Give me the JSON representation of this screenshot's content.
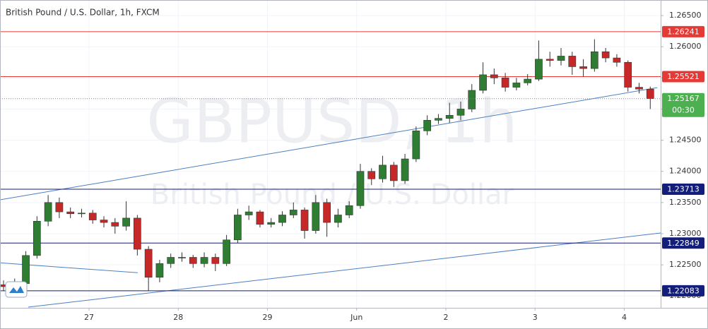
{
  "chart_data": {
    "type": "candlestick",
    "title": "British Pound / U.S. Dollar, 1h, FXCM",
    "watermark": "GBPUSD, 1h",
    "watermark_subtitle": "British Pound / U.S. Dollar",
    "countdown": "00:30",
    "up_color": "#2e7d32",
    "down_color": "#c62828",
    "grid": true,
    "x": [
      0,
      3,
      6,
      9,
      12,
      15,
      18,
      21,
      24,
      27,
      30,
      33,
      36,
      39,
      42,
      45,
      48,
      51,
      54,
      57,
      60,
      63,
      66,
      69,
      72,
      75,
      78,
      81,
      84,
      87,
      90,
      93,
      96,
      99,
      102,
      105,
      108,
      111,
      114,
      117,
      120,
      123,
      126,
      129,
      132,
      135,
      138,
      141,
      144,
      147,
      150,
      153,
      156,
      159,
      162,
      165,
      168,
      171,
      174
    ],
    "open": [
      1.2218,
      1.2215,
      1.222,
      1.2265,
      1.232,
      1.235,
      1.2335,
      1.2332,
      1.2333,
      1.2322,
      1.2318,
      1.2312,
      1.2325,
      1.2275,
      1.223,
      1.2252,
      1.2262,
      1.2262,
      1.2252,
      1.2262,
      1.2252,
      1.229,
      1.233,
      1.2335,
      1.2315,
      1.2318,
      1.233,
      1.2338,
      1.2305,
      1.235,
      1.2318,
      1.233,
      1.2345,
      1.24,
      1.2388,
      1.241,
      1.2385,
      1.242,
      1.2465,
      1.2482,
      1.2485,
      1.249,
      1.25,
      1.253,
      1.2555,
      1.255,
      1.2535,
      1.2542,
      1.2548,
      1.258,
      1.2578,
      1.2585,
      1.2568,
      1.2565,
      1.2592,
      1.2582,
      1.2575,
      1.2535,
      1.2532
    ],
    "high": [
      1.2225,
      1.2228,
      1.2272,
      1.2328,
      1.2362,
      1.2358,
      1.2342,
      1.234,
      1.2338,
      1.2328,
      1.2325,
      1.2352,
      1.233,
      1.228,
      1.2258,
      1.2268,
      1.227,
      1.2266,
      1.227,
      1.2268,
      1.2298,
      1.234,
      1.2345,
      1.2338,
      1.2325,
      1.2336,
      1.235,
      1.2342,
      1.2362,
      1.2356,
      1.234,
      1.2352,
      1.2412,
      1.2405,
      1.2425,
      1.2415,
      1.2428,
      1.2472,
      1.249,
      1.2492,
      1.251,
      1.2512,
      1.254,
      1.2575,
      1.2565,
      1.2558,
      1.255,
      1.2556,
      1.261,
      1.2592,
      1.2598,
      1.2592,
      1.258,
      1.2612,
      1.2598,
      1.2588,
      1.2578,
      1.2542,
      1.2536
    ],
    "low": [
      1.2208,
      1.221,
      1.2215,
      1.226,
      1.2312,
      1.2325,
      1.2325,
      1.2326,
      1.2316,
      1.231,
      1.23,
      1.2305,
      1.2265,
      1.2208,
      1.2222,
      1.2245,
      1.2255,
      1.2245,
      1.2246,
      1.224,
      1.2248,
      1.2285,
      1.2322,
      1.231,
      1.231,
      1.2312,
      1.2325,
      1.2292,
      1.23,
      1.2295,
      1.231,
      1.2325,
      1.234,
      1.2378,
      1.2382,
      1.2375,
      1.238,
      1.2415,
      1.2458,
      1.2476,
      1.2478,
      1.2482,
      1.2495,
      1.2525,
      1.254,
      1.2528,
      1.253,
      1.2538,
      1.2545,
      1.2568,
      1.257,
      1.2555,
      1.2552,
      1.256,
      1.2575,
      1.2568,
      1.2528,
      1.2525,
      1.25
    ],
    "close": [
      1.2215,
      1.222,
      1.2265,
      1.232,
      1.235,
      1.2335,
      1.2332,
      1.2333,
      1.2322,
      1.2318,
      1.2312,
      1.2325,
      1.2275,
      1.223,
      1.2252,
      1.2262,
      1.2262,
      1.2252,
      1.2262,
      1.2252,
      1.229,
      1.233,
      1.2335,
      1.2315,
      1.2318,
      1.233,
      1.2338,
      1.2305,
      1.235,
      1.2318,
      1.233,
      1.2345,
      1.24,
      1.2388,
      1.241,
      1.2385,
      1.242,
      1.2465,
      1.2482,
      1.2485,
      1.249,
      1.25,
      1.253,
      1.2555,
      1.255,
      1.2535,
      1.2542,
      1.2548,
      1.258,
      1.2578,
      1.2585,
      1.2568,
      1.2565,
      1.2592,
      1.2582,
      1.2575,
      1.2535,
      1.2532,
      1.25167
    ],
    "xlim": [
      -0.95,
      176.8
    ],
    "xticks": [
      {
        "value": 23,
        "label": "27"
      },
      {
        "value": 47,
        "label": "28"
      },
      {
        "value": 71,
        "label": "29"
      },
      {
        "value": 95,
        "label": "Jun"
      },
      {
        "value": 119,
        "label": "2"
      },
      {
        "value": 143,
        "label": "3"
      },
      {
        "value": 167,
        "label": "4"
      }
    ],
    "ylim": [
      1.2181,
      1.2675
    ],
    "yticks": [
      {
        "value": 1.265,
        "label": "1.26500"
      },
      {
        "value": 1.26,
        "label": "1.26000"
      },
      {
        "value": 1.255,
        "label": "1.25500"
      },
      {
        "value": 1.25,
        "label": "1.25000"
      },
      {
        "value": 1.245,
        "label": "1.24500"
      },
      {
        "value": 1.24,
        "label": "1.24000"
      },
      {
        "value": 1.235,
        "label": "1.23500"
      },
      {
        "value": 1.23,
        "label": "1.23000"
      },
      {
        "value": 1.225,
        "label": "1.22500"
      },
      {
        "value": 1.22,
        "label": "1.22000"
      }
    ],
    "levels": [
      {
        "value": 1.26241,
        "color": "#e53935"
      },
      {
        "value": 1.25521,
        "color": "#e53935"
      },
      {
        "value": 1.23713,
        "color": "#131d7a"
      },
      {
        "value": 1.22849,
        "color": "#131d7a"
      },
      {
        "value": 1.22083,
        "color": "#131d7a"
      }
    ],
    "last_price": {
      "value": 1.25167,
      "color": "#4caf50"
    },
    "trendline_color": "#4a7fc1",
    "trendlines": [
      {
        "x": [
          -0.95,
          175.9
        ],
        "y": [
          1.23543,
          1.25344
        ]
      },
      {
        "x": [
          6.65,
          176.8
        ],
        "y": [
          1.21821,
          1.23011
        ]
      },
      {
        "x": [
          -0.95,
          36.1
        ],
        "y": [
          1.22532,
          1.22373
        ]
      }
    ]
  }
}
